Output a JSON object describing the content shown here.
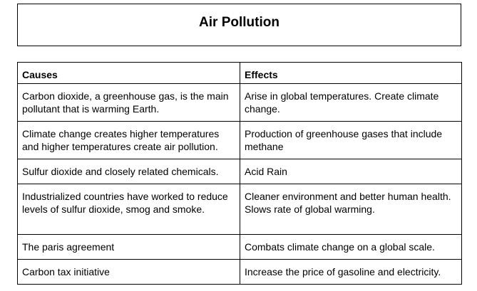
{
  "title": "Air Pollution",
  "table": {
    "headers": [
      "Causes",
      "Effects"
    ],
    "rows": [
      {
        "cause": "Carbon dioxide, a greenhouse gas, is the main pollutant that is warming Earth.",
        "effect": "Arise in global temperatures. Create climate change."
      },
      {
        "cause": "Climate change creates higher temperatures and higher temperatures create air pollution.",
        "effect": "Production of greenhouse gases that include methane"
      },
      {
        "cause": " Sulfur dioxide and closely related chemicals.",
        "effect": "Acid Rain"
      },
      {
        "cause": "Industrialized countries have worked to reduce levels of sulfur dioxide, smog and smoke.",
        "effect": "Cleaner environment and better human health. Slows rate of global warming."
      },
      {
        "cause": "The paris agreement",
        "effect": "Combats climate change on a global scale."
      },
      {
        "cause": "Carbon tax initiative",
        "effect": "Increase the price of gasoline and electricity."
      }
    ]
  }
}
